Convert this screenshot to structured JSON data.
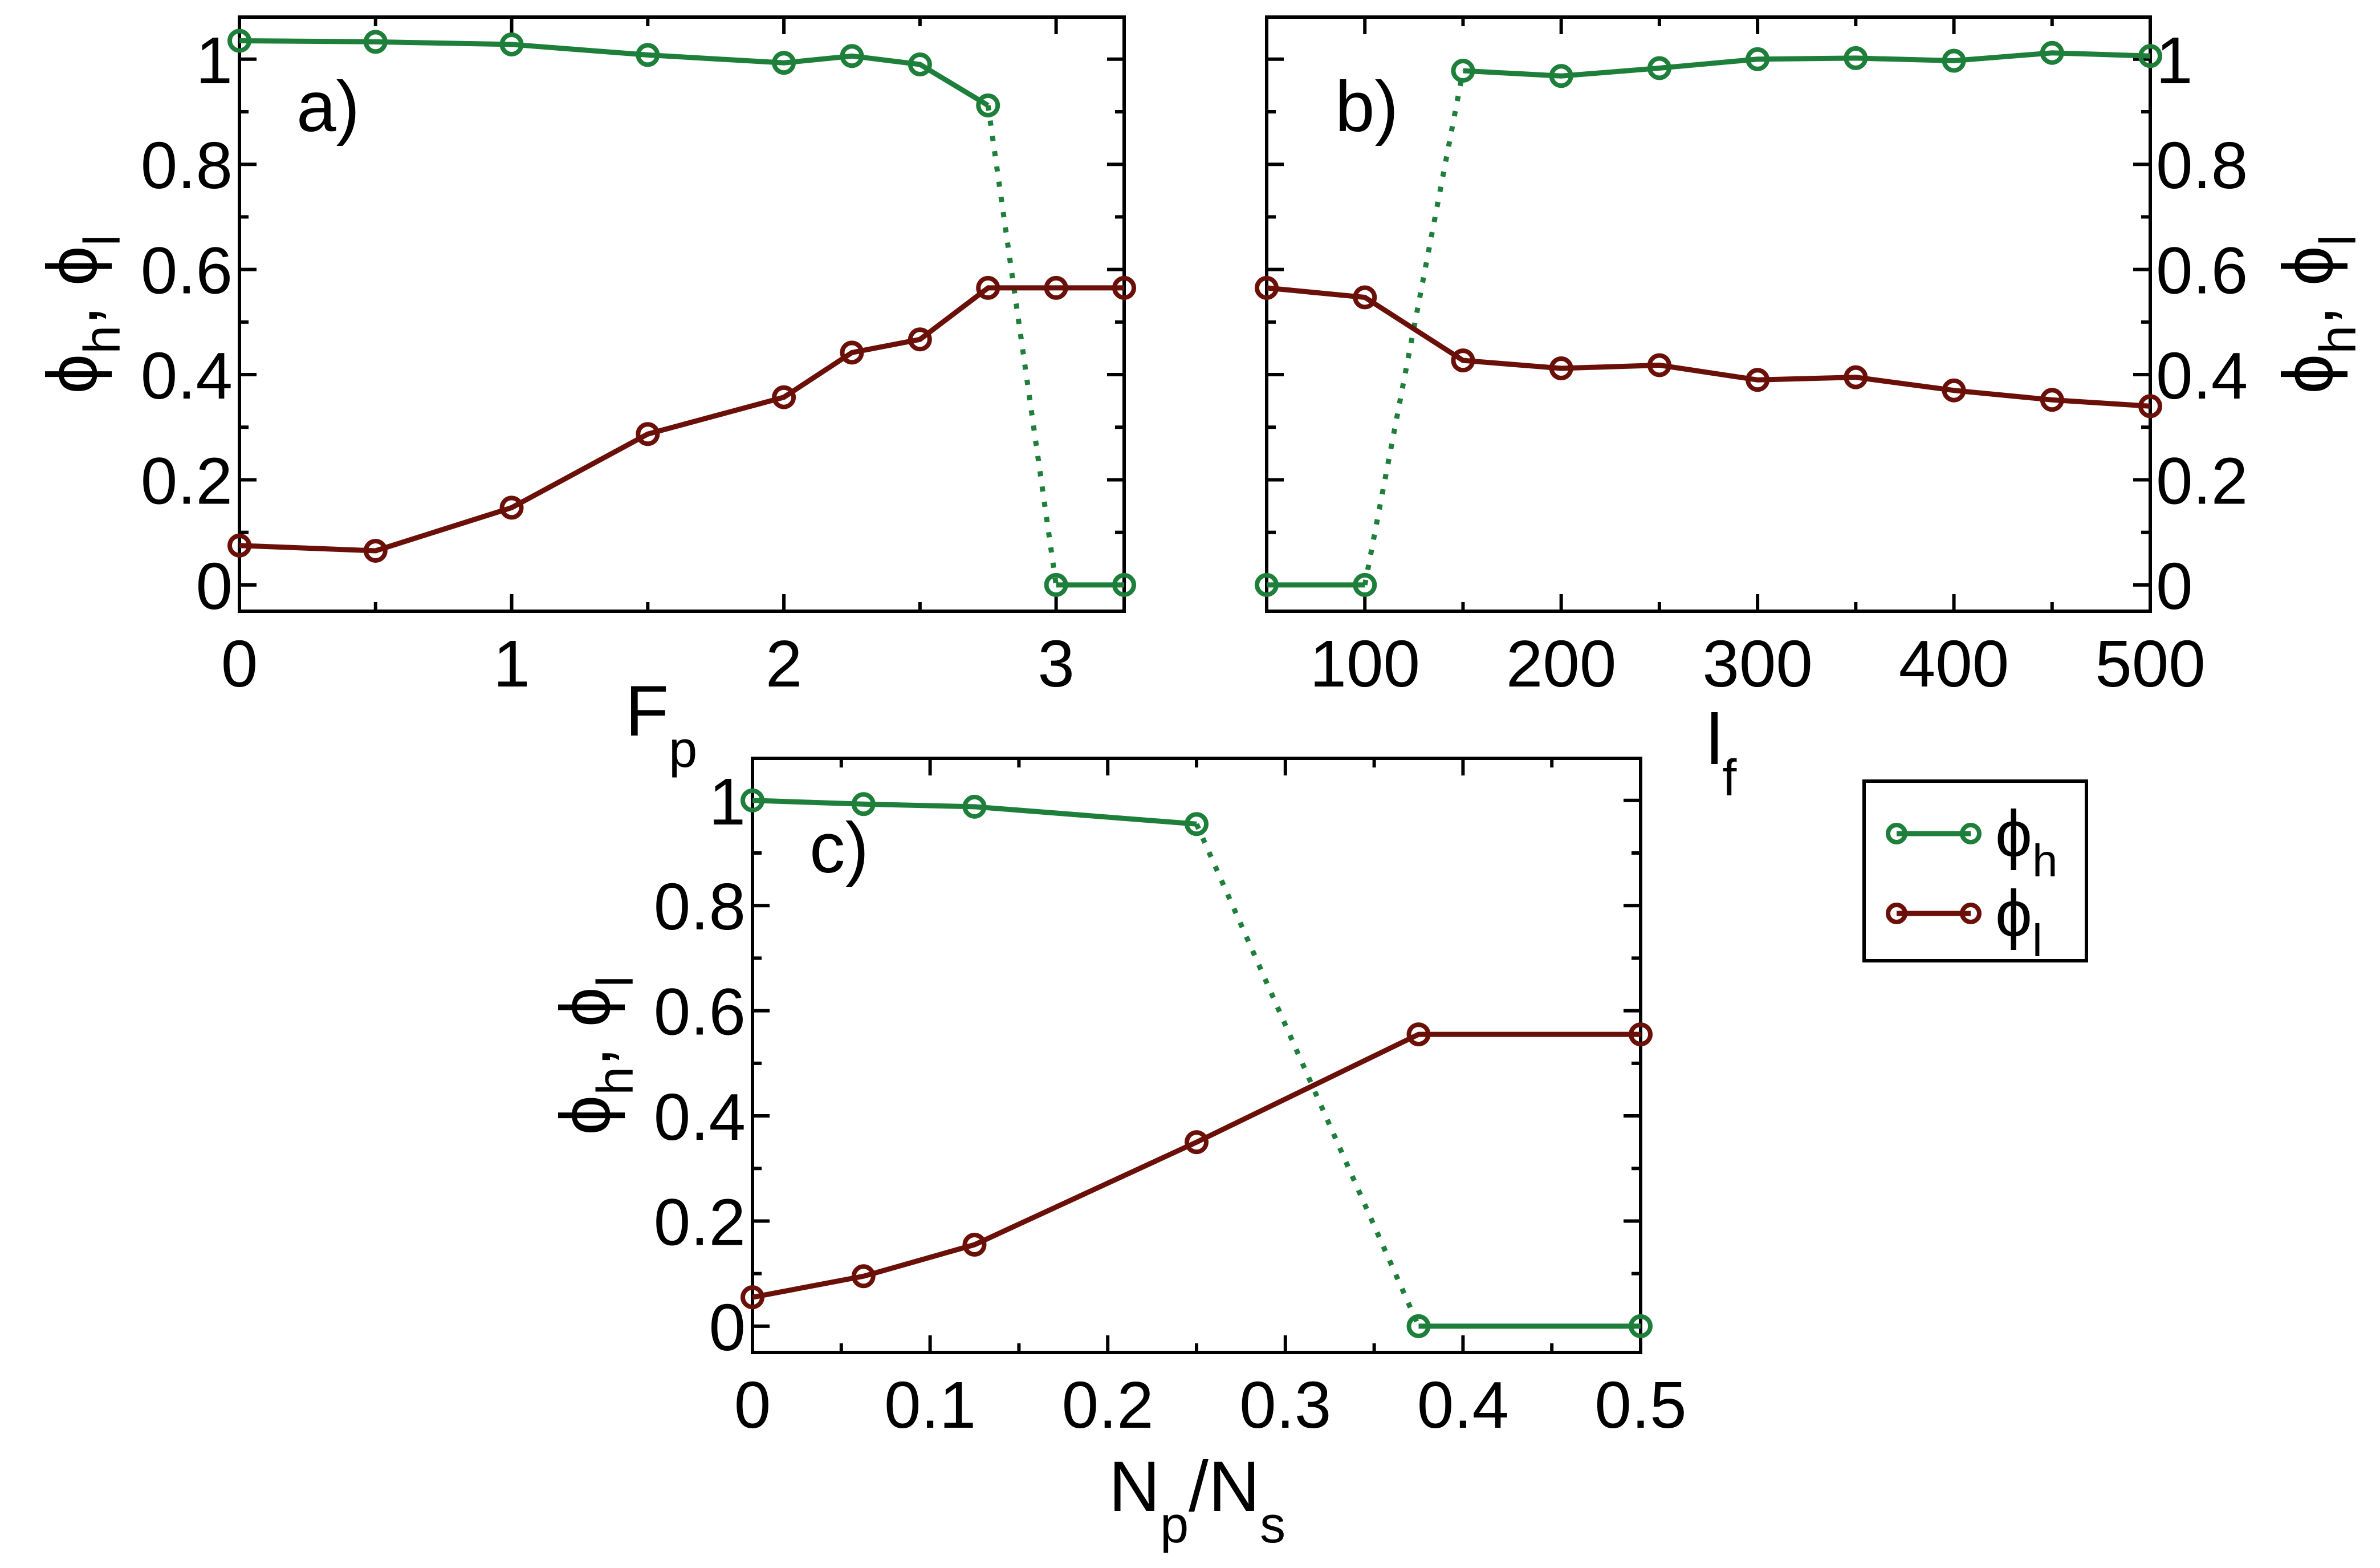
{
  "figure": {
    "legend": [
      {
        "label": "ϕ",
        "sub": "h",
        "color": "#1d7f3a"
      },
      {
        "label": "ϕ",
        "sub": "l",
        "color": "#6b1008"
      }
    ]
  },
  "chart_data": [
    {
      "type": "line",
      "panel": "a)",
      "xlabel": "F",
      "xlabel_sub": "p",
      "ylabel": "ϕh, ϕl",
      "xlim": [
        0,
        3.25
      ],
      "ylim": [
        -0.05,
        1.08
      ],
      "xticks": [
        0,
        1,
        2,
        3
      ],
      "xtick_labels": [
        "0",
        "1",
        "2",
        "3"
      ],
      "yticks": [
        0,
        0.2,
        0.4,
        0.6,
        0.8,
        1
      ],
      "ytick_labels": [
        "0",
        "0.2",
        "0.4",
        "0.6",
        "0.8",
        "1"
      ],
      "yaxis_side": "left",
      "series": [
        {
          "name": "ϕh",
          "color": "#1d7f3a",
          "x": [
            0,
            0.5,
            1,
            1.5,
            2,
            2.25,
            2.5,
            2.75,
            3,
            3.25
          ],
          "y": [
            1.035,
            1.033,
            1.028,
            1.008,
            0.993,
            1.006,
            0.99,
            0.912,
            0,
            0
          ],
          "dotted_between": [
            7,
            8
          ]
        },
        {
          "name": "ϕl",
          "color": "#6b1008",
          "x": [
            0,
            0.5,
            1,
            1.5,
            2,
            2.25,
            2.5,
            2.75,
            3,
            3.25
          ],
          "y": [
            0.075,
            0.065,
            0.147,
            0.287,
            0.357,
            0.442,
            0.467,
            0.565,
            0.565,
            0.565
          ]
        }
      ]
    },
    {
      "type": "line",
      "panel": "b)",
      "xlabel": "l",
      "xlabel_sub": "f",
      "ylabel": "ϕh, ϕl",
      "xlim": [
        50,
        500
      ],
      "ylim": [
        -0.05,
        1.08
      ],
      "xticks": [
        100,
        200,
        300,
        400,
        500
      ],
      "xtick_labels": [
        "100",
        "200",
        "300",
        "400",
        "500"
      ],
      "yticks": [
        0,
        0.2,
        0.4,
        0.6,
        0.8,
        1
      ],
      "ytick_labels": [
        "0",
        "0.2",
        "0.4",
        "0.6",
        "0.8",
        "1"
      ],
      "yaxis_side": "right",
      "series": [
        {
          "name": "ϕh",
          "color": "#1d7f3a",
          "x": [
            50,
            100,
            150,
            200,
            250,
            300,
            350,
            400,
            450,
            500
          ],
          "y": [
            0,
            0,
            0.978,
            0.968,
            0.983,
            1.0,
            1.002,
            0.997,
            1.012,
            1.006
          ],
          "dotted_between": [
            1,
            2
          ]
        },
        {
          "name": "ϕl",
          "color": "#6b1008",
          "x": [
            50,
            100,
            150,
            200,
            250,
            300,
            350,
            400,
            450,
            500
          ],
          "y": [
            0.565,
            0.547,
            0.427,
            0.412,
            0.418,
            0.39,
            0.395,
            0.37,
            0.352,
            0.34
          ]
        }
      ]
    },
    {
      "type": "line",
      "panel": "c)",
      "xlabel": "N",
      "xlabel_sub": "p",
      "xlabel_mid": "/N",
      "xlabel_sub2": "s",
      "ylabel": "ϕh, ϕl",
      "xlim": [
        0,
        0.5
      ],
      "ylim": [
        -0.05,
        1.08
      ],
      "xticks": [
        0,
        0.1,
        0.2,
        0.3,
        0.4,
        0.5
      ],
      "xtick_labels": [
        "0",
        "0.1",
        "0.2",
        "0.3",
        "0.4",
        "0.5"
      ],
      "yticks": [
        0,
        0.2,
        0.4,
        0.6,
        0.8,
        1
      ],
      "ytick_labels": [
        "0",
        "0.2",
        "0.4",
        "0.6",
        "0.8",
        "1"
      ],
      "yaxis_side": "left",
      "series": [
        {
          "name": "ϕh",
          "color": "#1d7f3a",
          "x": [
            0,
            0.0625,
            0.125,
            0.25,
            0.375,
            0.5
          ],
          "y": [
            1.0,
            0.993,
            0.988,
            0.955,
            0,
            0
          ],
          "dotted_between": [
            3,
            4
          ]
        },
        {
          "name": "ϕl",
          "color": "#6b1008",
          "x": [
            0,
            0.0625,
            0.125,
            0.25,
            0.375,
            0.5
          ],
          "y": [
            0.055,
            0.095,
            0.155,
            0.35,
            0.555,
            0.555
          ]
        }
      ]
    }
  ]
}
